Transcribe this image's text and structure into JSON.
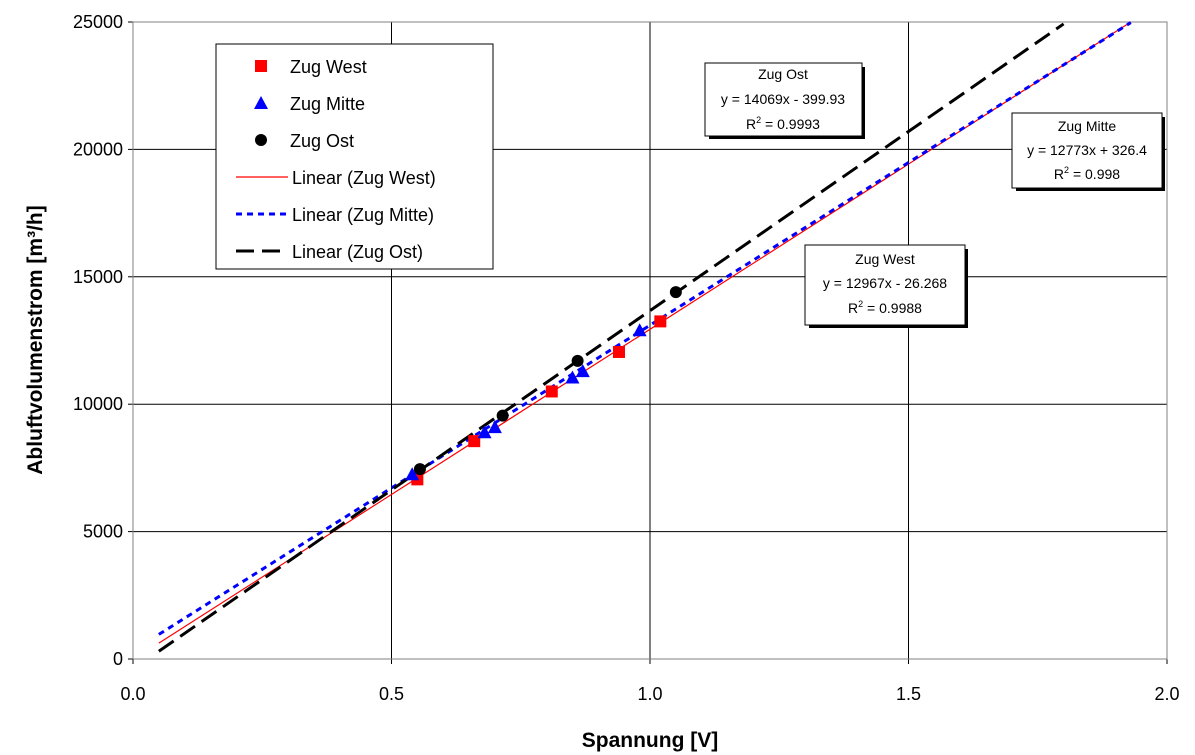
{
  "chart_data": {
    "type": "scatter",
    "xlabel": "Spannung [V]",
    "ylabel": "Abluftvolumenstrom [m³/h]",
    "xlim": [
      0.0,
      2.0
    ],
    "ylim": [
      0,
      25000
    ],
    "x_ticks": [
      "0.0",
      "0.5",
      "1.0",
      "1.5",
      "2.0"
    ],
    "y_ticks": [
      "0",
      "5000",
      "10000",
      "15000",
      "20000",
      "25000"
    ],
    "grid": true,
    "legend_position": "top-left",
    "series": [
      {
        "name": "Zug West",
        "marker": "square",
        "color": "#ff0000",
        "x": [
          0.55,
          0.66,
          0.81,
          0.94,
          1.02
        ],
        "y": [
          7050,
          8550,
          10500,
          12050,
          13250
        ]
      },
      {
        "name": "Zug Mitte",
        "marker": "triangle",
        "color": "#0000ff",
        "x": [
          0.54,
          0.68,
          0.7,
          0.85,
          0.87,
          0.98
        ],
        "y": [
          7250,
          8900,
          9100,
          11050,
          11300,
          12900
        ]
      },
      {
        "name": "Zug Ost",
        "marker": "circle",
        "color": "#000000",
        "x": [
          0.555,
          0.715,
          0.86,
          1.05
        ],
        "y": [
          7450,
          9550,
          11700,
          14400
        ]
      }
    ],
    "trendlines": [
      {
        "name": "Linear (Zug West)",
        "style": "solid",
        "color": "#ff0000",
        "slope": 12967,
        "intercept": -26.268,
        "x_range": [
          0.05,
          1.93
        ]
      },
      {
        "name": "Linear (Zug Mitte)",
        "style": "dotted",
        "color": "#0000ff",
        "slope": 12773,
        "intercept": 326.4,
        "x_range": [
          0.05,
          1.93
        ]
      },
      {
        "name": "Linear (Zug Ost)",
        "style": "dashed",
        "color": "#000000",
        "slope": 14069,
        "intercept": -399.93,
        "x_range": [
          0.05,
          1.8
        ]
      }
    ],
    "annotations": [
      {
        "title": "Zug Ost",
        "equation": "y = 14069x - 399.93",
        "r2_label": "R",
        "r2_exp": "2",
        "r2_value": " = 0.9993"
      },
      {
        "title": "Zug Mitte",
        "equation": "y = 12773x + 326.4",
        "r2_label": "R",
        "r2_exp": "2",
        "r2_value": " = 0.998"
      },
      {
        "title": "Zug West",
        "equation": "y = 12967x - 26.268",
        "r2_label": "R",
        "r2_exp": "2",
        "r2_value": " = 0.9988"
      }
    ]
  }
}
